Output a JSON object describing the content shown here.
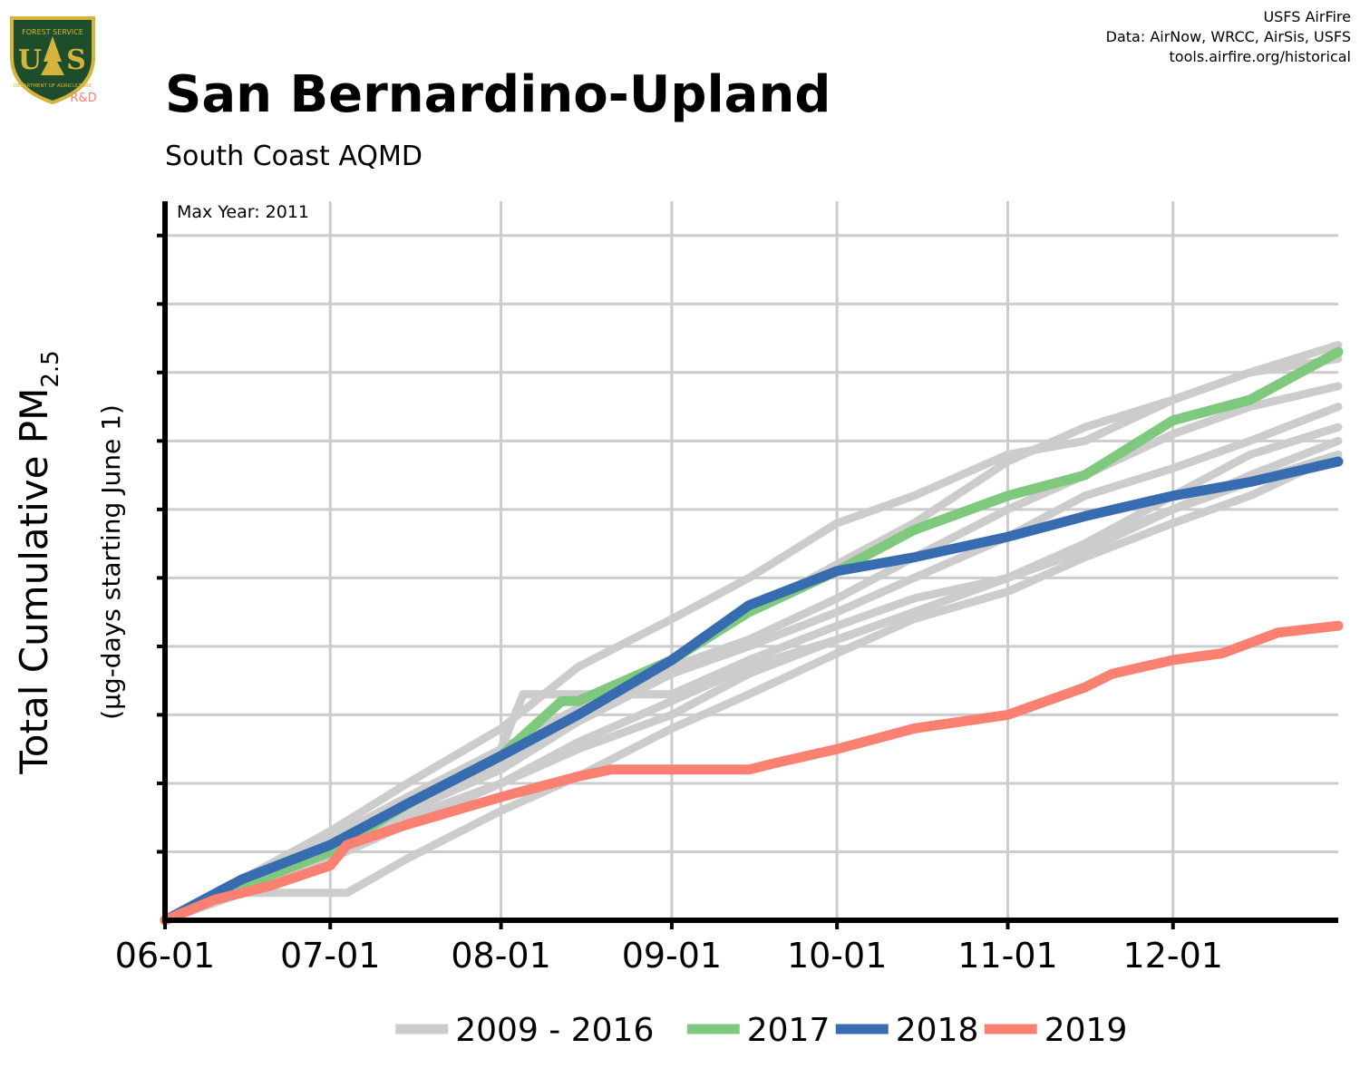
{
  "header": {
    "credit_lines": [
      "USFS AirFire",
      "Data: AirNow, WRCC, AirSis, USFS",
      "tools.airfire.org/historical"
    ],
    "logo_text": [
      "FOREST SERVICE",
      "U",
      "S",
      "DEPARTMENT OF AGRICULTURE"
    ],
    "logo_badge": "R&D"
  },
  "chart_data": {
    "type": "line",
    "title": "San Bernardino-Upland",
    "subtitle": "South Coast AQMD",
    "ylabel_main": "Total Cumulative PM",
    "ylabel_sub": "2.5",
    "ylabel_secondary": "(µg-days starting June 1)",
    "annotation": "Max Year: 2011",
    "x_domain": [
      "06-01",
      "12-31"
    ],
    "x_ticks": [
      "06-01",
      "07-01",
      "08-01",
      "09-01",
      "10-01",
      "11-01",
      "12-01"
    ],
    "y_range": [
      0,
      105
    ],
    "y_gridlines": [
      10,
      20,
      30,
      40,
      50,
      60,
      70,
      80,
      90,
      100
    ],
    "y_tick_labels_shown": false,
    "grid": true,
    "legend_position": "bottom",
    "colors": {
      "history": "#cccccc",
      "2017": "#7fc97f",
      "2018": "#386cb0",
      "2019": "#fa8072"
    },
    "series": [
      {
        "name": "2009 - 2016",
        "color": "#cccccc",
        "points": [
          [
            "06-01",
            0
          ],
          [
            "06-15",
            6
          ],
          [
            "07-01",
            12
          ],
          [
            "07-15",
            18
          ],
          [
            "08-01",
            25
          ],
          [
            "08-15",
            31
          ],
          [
            "09-01",
            38
          ],
          [
            "09-15",
            45
          ],
          [
            "10-01",
            52
          ],
          [
            "10-15",
            58
          ],
          [
            "11-01",
            67
          ],
          [
            "11-15",
            72
          ],
          [
            "12-01",
            76
          ],
          [
            "12-15",
            80
          ],
          [
            "12-31",
            84
          ]
        ]
      },
      {
        "name": "2009 - 2016",
        "color": "#cccccc",
        "points": [
          [
            "06-01",
            0
          ],
          [
            "06-15",
            5
          ],
          [
            "07-01",
            11
          ],
          [
            "07-15",
            17
          ],
          [
            "08-01",
            23
          ],
          [
            "08-15",
            30
          ],
          [
            "09-01",
            37
          ],
          [
            "09-15",
            41
          ],
          [
            "10-01",
            47
          ],
          [
            "10-15",
            53
          ],
          [
            "11-01",
            60
          ],
          [
            "11-15",
            65
          ],
          [
            "12-01",
            71
          ],
          [
            "12-15",
            75
          ],
          [
            "12-31",
            78
          ]
        ]
      },
      {
        "name": "2009 - 2016",
        "color": "#cccccc",
        "points": [
          [
            "06-01",
            0
          ],
          [
            "06-15",
            5
          ],
          [
            "07-01",
            10
          ],
          [
            "07-15",
            16
          ],
          [
            "08-01",
            22
          ],
          [
            "08-15",
            29
          ],
          [
            "09-01",
            36
          ],
          [
            "09-15",
            40
          ],
          [
            "10-01",
            45
          ],
          [
            "10-15",
            50
          ],
          [
            "11-01",
            56
          ],
          [
            "11-15",
            62
          ],
          [
            "12-01",
            66
          ],
          [
            "12-15",
            70
          ],
          [
            "12-31",
            75
          ]
        ]
      },
      {
        "name": "2009 - 2016",
        "color": "#cccccc",
        "points": [
          [
            "06-01",
            0
          ],
          [
            "06-15",
            5
          ],
          [
            "07-01",
            10
          ],
          [
            "07-15",
            15
          ],
          [
            "08-01",
            20
          ],
          [
            "08-15",
            25
          ],
          [
            "09-01",
            30
          ],
          [
            "09-15",
            36
          ],
          [
            "10-01",
            41
          ],
          [
            "10-15",
            45
          ],
          [
            "11-01",
            50
          ],
          [
            "11-15",
            55
          ],
          [
            "12-01",
            62
          ],
          [
            "12-15",
            68
          ],
          [
            "12-31",
            72
          ]
        ]
      },
      {
        "name": "2009 - 2016",
        "color": "#cccccc",
        "points": [
          [
            "06-01",
            0
          ],
          [
            "06-15",
            4
          ],
          [
            "07-01",
            9
          ],
          [
            "07-15",
            14
          ],
          [
            "08-01",
            20
          ],
          [
            "08-15",
            26
          ],
          [
            "09-01",
            32
          ],
          [
            "09-15",
            37
          ],
          [
            "10-01",
            41
          ],
          [
            "10-15",
            45
          ],
          [
            "11-01",
            50
          ],
          [
            "11-15",
            55
          ],
          [
            "12-01",
            60
          ],
          [
            "12-15",
            65
          ],
          [
            "12-31",
            70
          ]
        ]
      },
      {
        "name": "2009 - 2016",
        "color": "#cccccc",
        "points": [
          [
            "06-01",
            0
          ],
          [
            "06-15",
            4
          ],
          [
            "07-01",
            4
          ],
          [
            "07-04",
            4
          ],
          [
            "07-15",
            9
          ],
          [
            "08-01",
            16
          ],
          [
            "08-15",
            21
          ],
          [
            "09-01",
            28
          ],
          [
            "09-15",
            33
          ],
          [
            "10-01",
            39
          ],
          [
            "10-15",
            44
          ],
          [
            "11-01",
            48
          ],
          [
            "11-15",
            53
          ],
          [
            "12-01",
            58
          ],
          [
            "12-15",
            62
          ],
          [
            "12-31",
            68
          ]
        ]
      },
      {
        "name": "2009 - 2016",
        "color": "#cccccc",
        "points": [
          [
            "06-01",
            0
          ],
          [
            "06-15",
            5
          ],
          [
            "07-01",
            10
          ],
          [
            "07-15",
            17
          ],
          [
            "08-01",
            25
          ],
          [
            "08-05",
            33
          ],
          [
            "08-15",
            33
          ],
          [
            "09-01",
            33
          ],
          [
            "09-15",
            38
          ],
          [
            "10-01",
            43
          ],
          [
            "10-15",
            47
          ],
          [
            "11-01",
            50
          ],
          [
            "11-15",
            54
          ],
          [
            "12-01",
            60
          ],
          [
            "12-15",
            64
          ],
          [
            "12-31",
            68
          ]
        ]
      },
      {
        "name": "2009 - 2016",
        "color": "#cccccc",
        "points": [
          [
            "06-01",
            0
          ],
          [
            "06-15",
            6
          ],
          [
            "07-01",
            13
          ],
          [
            "07-15",
            20
          ],
          [
            "08-01",
            28
          ],
          [
            "08-15",
            37
          ],
          [
            "09-01",
            44
          ],
          [
            "09-15",
            50
          ],
          [
            "10-01",
            58
          ],
          [
            "10-15",
            62
          ],
          [
            "11-01",
            68
          ],
          [
            "11-15",
            70
          ],
          [
            "12-01",
            76
          ],
          [
            "12-15",
            80
          ],
          [
            "12-31",
            82
          ]
        ]
      },
      {
        "name": "2017",
        "color": "#7fc97f",
        "points": [
          [
            "06-01",
            0
          ],
          [
            "06-15",
            5
          ],
          [
            "07-01",
            10
          ],
          [
            "07-15",
            17
          ],
          [
            "08-01",
            24
          ],
          [
            "08-12",
            32
          ],
          [
            "08-15",
            32
          ],
          [
            "09-01",
            38
          ],
          [
            "09-15",
            45
          ],
          [
            "10-01",
            51
          ],
          [
            "10-15",
            57
          ],
          [
            "11-01",
            62
          ],
          [
            "11-15",
            65
          ],
          [
            "12-01",
            73
          ],
          [
            "12-15",
            76
          ],
          [
            "12-31",
            83
          ]
        ]
      },
      {
        "name": "2018",
        "color": "#386cb0",
        "points": [
          [
            "06-01",
            0
          ],
          [
            "06-15",
            6
          ],
          [
            "07-01",
            11
          ],
          [
            "07-15",
            17
          ],
          [
            "08-01",
            24
          ],
          [
            "08-15",
            30
          ],
          [
            "09-01",
            38
          ],
          [
            "09-15",
            46
          ],
          [
            "10-01",
            51
          ],
          [
            "10-15",
            53
          ],
          [
            "11-01",
            56
          ],
          [
            "11-15",
            59
          ],
          [
            "12-01",
            62
          ],
          [
            "12-15",
            64
          ],
          [
            "12-31",
            67
          ]
        ]
      },
      {
        "name": "2019",
        "color": "#fa8072",
        "points": [
          [
            "06-01",
            0
          ],
          [
            "06-10",
            3
          ],
          [
            "06-20",
            5
          ],
          [
            "07-01",
            8
          ],
          [
            "07-04",
            11
          ],
          [
            "07-15",
            14
          ],
          [
            "08-01",
            18
          ],
          [
            "08-15",
            21
          ],
          [
            "08-21",
            22
          ],
          [
            "09-01",
            22
          ],
          [
            "09-15",
            22
          ],
          [
            "09-20",
            23
          ],
          [
            "10-01",
            25
          ],
          [
            "10-15",
            28
          ],
          [
            "11-01",
            30
          ],
          [
            "11-15",
            34
          ],
          [
            "11-20",
            36
          ],
          [
            "12-01",
            38
          ],
          [
            "12-10",
            39
          ],
          [
            "12-20",
            42
          ],
          [
            "12-31",
            43
          ]
        ]
      }
    ]
  },
  "legend": {
    "items": [
      {
        "label": "2009 - 2016",
        "color": "#cccccc"
      },
      {
        "label": "2017",
        "color": "#7fc97f"
      },
      {
        "label": "2018",
        "color": "#386cb0"
      },
      {
        "label": "2019",
        "color": "#fa8072"
      }
    ]
  }
}
